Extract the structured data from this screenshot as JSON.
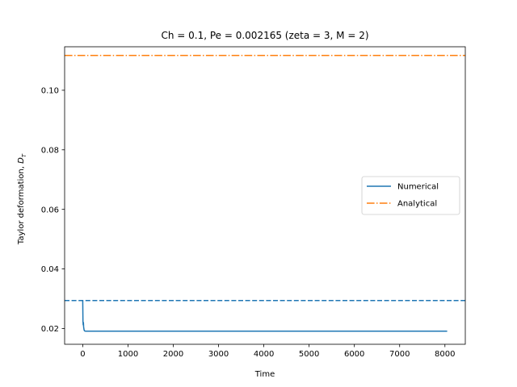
{
  "chart_data": {
    "type": "line",
    "title": "Ch = 0.1, Pe = 0.002165 (zeta = 3, M = 2)",
    "xlabel": "Time",
    "ylabel": "Taylor deformation, ",
    "ylabel_symbol": "D",
    "ylabel_subscript": "T",
    "xlim": [
      -400,
      8450
    ],
    "ylim": [
      0.0147,
      0.1146
    ],
    "xticks": [
      0,
      1000,
      2000,
      3000,
      4000,
      5000,
      6000,
      7000,
      8000
    ],
    "yticks": [
      0.02,
      0.04,
      0.06,
      0.08,
      0.1
    ],
    "ytick_labels": [
      "0.02",
      "0.04",
      "0.06",
      "0.08",
      "0.10"
    ],
    "grid": false,
    "legend_position": "center-right",
    "series": [
      {
        "name": "Numerical",
        "color": "#1f77b4",
        "style": "solid",
        "x": [
          0,
          5,
          10,
          15,
          20,
          30,
          40,
          60,
          80,
          100,
          200,
          1000,
          4000,
          8050
        ],
        "y": [
          0.0293,
          0.0225,
          0.0212,
          0.022,
          0.0205,
          0.0195,
          0.0192,
          0.0191,
          0.0191,
          0.0191,
          0.0191,
          0.0191,
          0.0191,
          0.0191
        ]
      },
      {
        "name": "Analytical",
        "color": "#ff7f0e",
        "style": "dashdot",
        "hline": 0.1117
      }
    ],
    "reference_lines": [
      {
        "color": "#1f77b4",
        "style": "dashed",
        "hline": 0.0294
      }
    ]
  }
}
